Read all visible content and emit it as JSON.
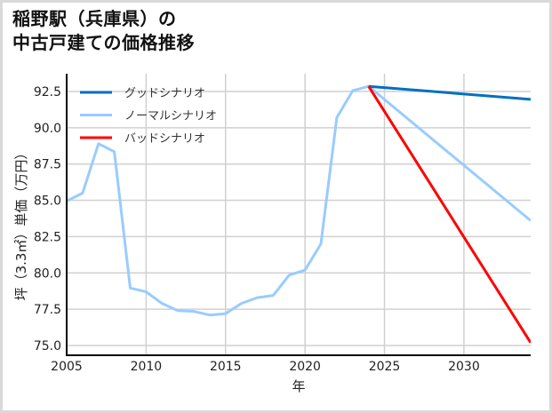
{
  "title_line1": "稲野駅（兵庫県）の",
  "title_line2": "中古戸建ての価格推移",
  "chart_data": {
    "type": "line",
    "title": "稲野駅（兵庫県）の中古戸建ての価格推移",
    "xlabel": "年",
    "ylabel": "坪（3.3㎡）単価（万円）",
    "xlim": [
      2005,
      2034.2
    ],
    "ylim": [
      74.33,
      93.72
    ],
    "x_ticks": [
      2005,
      2010,
      2015,
      2020,
      2025,
      2030
    ],
    "y_ticks": [
      75.0,
      77.5,
      80.0,
      82.5,
      85.0,
      87.5,
      90.0,
      92.5
    ],
    "y_tick_labels": [
      "75.0",
      "77.5",
      "80.0",
      "82.5",
      "85.0",
      "87.5",
      "90.0",
      "92.5"
    ],
    "grid": true,
    "legend_position": "upper left",
    "series": [
      {
        "name": "グッドシナリオ",
        "color": "#0070c0",
        "x": [
          2024,
          2034.2
        ],
        "values": [
          92.85,
          91.95
        ]
      },
      {
        "name": "ノーマルシナリオ",
        "color": "#99ccff",
        "x": [
          2005,
          2006,
          2007,
          2008,
          2009,
          2010,
          2011,
          2012,
          2013,
          2014,
          2015,
          2016,
          2017,
          2018,
          2019,
          2020,
          2021,
          2022,
          2023,
          2024,
          2034.2
        ],
        "values": [
          84.95,
          85.5,
          88.9,
          88.35,
          78.96,
          78.7,
          77.9,
          77.4,
          77.35,
          77.1,
          77.2,
          77.9,
          78.3,
          78.45,
          79.85,
          80.2,
          82.0,
          90.7,
          92.55,
          92.85,
          83.6
        ]
      },
      {
        "name": "バッドシナリオ",
        "color": "#ff0000",
        "x": [
          2024,
          2034.2
        ],
        "values": [
          92.85,
          75.2
        ]
      }
    ]
  }
}
